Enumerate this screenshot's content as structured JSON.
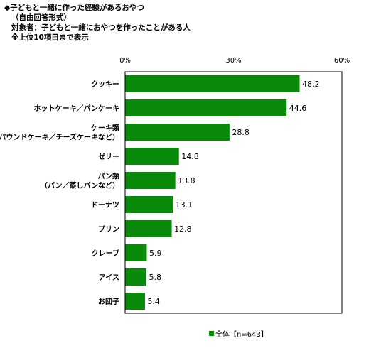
{
  "header": {
    "title": "◆子どもと一緒に作った経験があるおやつ",
    "subtitle": "（自由回答形式）",
    "target": "対象者：子どもと一緒におやつを作ったことがある人",
    "note": "※上位10項目まで表示"
  },
  "legend": {
    "label": "全体【n=643】"
  },
  "colors": {
    "bar": "#0a8a0a",
    "axis": "#000000",
    "grid": "#888888"
  },
  "chart_data": {
    "type": "bar",
    "orientation": "horizontal",
    "categories": [
      [
        "クッキー"
      ],
      [
        "ホットケーキ／パンケーキ"
      ],
      [
        "ケーキ類",
        "（パウンドケーキ／チーズケーキなど）"
      ],
      [
        "ゼリー"
      ],
      [
        "パン類",
        "（パン／蒸しパンなど）"
      ],
      [
        "ドーナツ"
      ],
      [
        "プリン"
      ],
      [
        "クレープ"
      ],
      [
        "アイス"
      ],
      [
        "お団子"
      ]
    ],
    "series": [
      {
        "name": "全体【n=643】",
        "values": [
          48.2,
          44.6,
          28.8,
          14.8,
          13.8,
          13.1,
          12.8,
          5.9,
          5.8,
          5.4
        ]
      }
    ],
    "value_labels": [
      "48.2",
      "44.6",
      "28.8",
      "14.8",
      "13.8",
      "13.1",
      "12.8",
      "5.9",
      "5.8",
      "5.4"
    ],
    "xlim": [
      0,
      60
    ],
    "xticks": [
      0,
      30,
      60
    ],
    "xtick_labels": [
      "0%",
      "30%",
      "60%"
    ],
    "title": "",
    "xlabel": "",
    "ylabel": "",
    "grid": false,
    "legend_position": "bottom"
  }
}
